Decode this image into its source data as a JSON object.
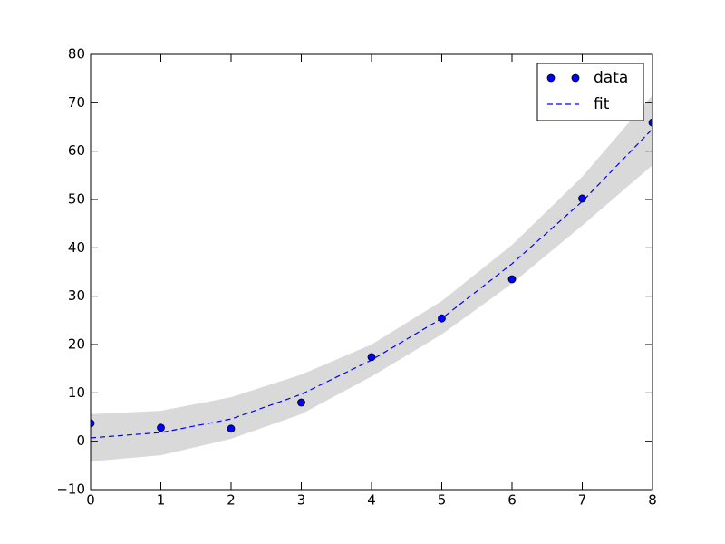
{
  "chart_data": {
    "type": "scatter",
    "x": [
      0,
      1,
      2,
      3,
      4,
      5,
      6,
      7,
      8
    ],
    "series": [
      {
        "name": "data",
        "color": "#0000ff",
        "style": "markers",
        "values": [
          3.7,
          2.8,
          2.6,
          8.0,
          17.4,
          25.4,
          33.5,
          50.2,
          65.9
        ]
      },
      {
        "name": "fit",
        "color": "#0000ff",
        "style": "dashed",
        "values": [
          0.7,
          1.8,
          4.6,
          9.7,
          16.8,
          25.4,
          36.7,
          49.6,
          64.6
        ]
      }
    ],
    "band": {
      "color": "#d9d9d9",
      "upper": [
        5.6,
        6.3,
        9.1,
        13.8,
        20.0,
        29.0,
        40.6,
        54.7,
        71.6
      ],
      "lower": [
        -4.2,
        -2.9,
        0.5,
        5.6,
        13.4,
        22.1,
        32.6,
        44.6,
        57.1
      ]
    },
    "xlim": [
      0,
      8
    ],
    "xticks": [
      0,
      1,
      2,
      3,
      4,
      5,
      6,
      7,
      8
    ],
    "ylim": [
      -10,
      80
    ],
    "yticks": [
      {
        "value": -10,
        "label": "−10"
      },
      0,
      10,
      20,
      30,
      40,
      50,
      60,
      70,
      80
    ],
    "legend": "upper right",
    "grid": false
  }
}
